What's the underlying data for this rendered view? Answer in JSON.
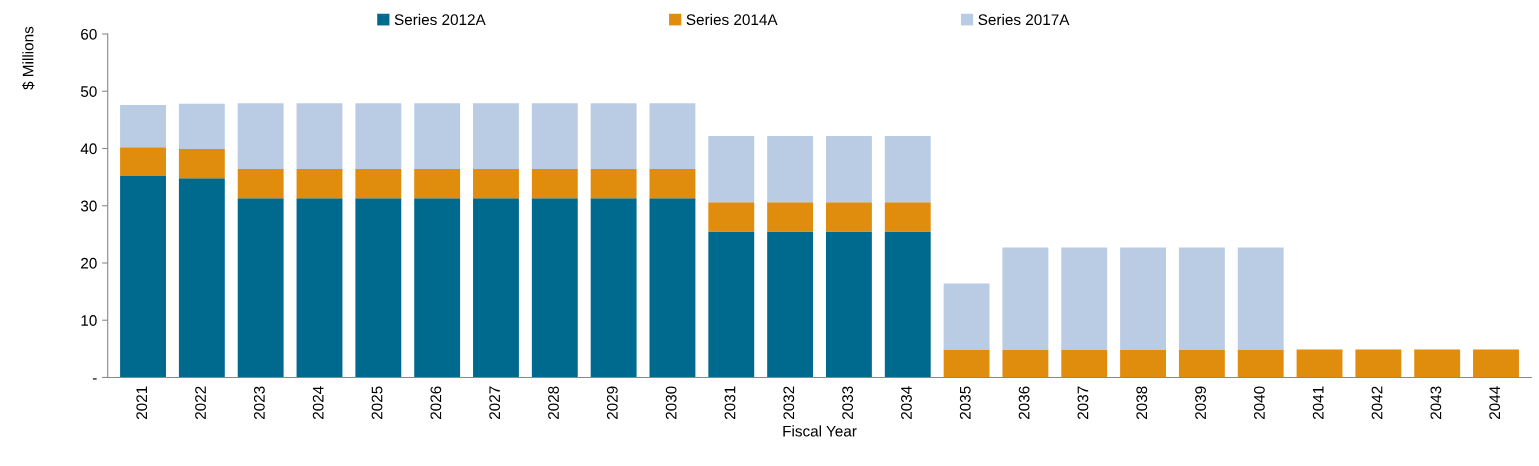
{
  "chart_data": {
    "type": "bar",
    "stacked": true,
    "xlabel": "Fiscal Year",
    "ylabel": "$ Millions",
    "categories": [
      "2021",
      "2022",
      "2023",
      "2024",
      "2025",
      "2026",
      "2027",
      "2028",
      "2029",
      "2030",
      "2031",
      "2032",
      "2033",
      "2034",
      "2035",
      "2036",
      "2037",
      "2038",
      "2039",
      "2040",
      "2041",
      "2042",
      "2043",
      "2044"
    ],
    "series": [
      {
        "name": "Series 2012A",
        "color": "#006a8e",
        "values": [
          35.2,
          34.8,
          31.3,
          31.3,
          31.3,
          31.3,
          31.3,
          31.3,
          31.3,
          31.3,
          25.5,
          25.5,
          25.5,
          25.5,
          null,
          null,
          null,
          null,
          null,
          null,
          null,
          null,
          null,
          null
        ]
      },
      {
        "name": "Series 2014A",
        "color": "#e08c0c",
        "values": [
          5.0,
          5.1,
          5.1,
          5.1,
          5.1,
          5.1,
          5.1,
          5.1,
          5.1,
          5.1,
          5.1,
          5.1,
          5.1,
          5.1,
          4.9,
          4.9,
          4.9,
          4.9,
          4.9,
          4.9,
          4.9,
          4.9,
          4.9,
          4.9
        ]
      },
      {
        "name": "Series 2017A",
        "color": "#b9cce4",
        "values": [
          7.4,
          7.9,
          11.5,
          11.5,
          11.5,
          11.5,
          11.5,
          11.5,
          11.5,
          11.5,
          11.6,
          11.6,
          11.6,
          11.6,
          11.5,
          17.8,
          17.8,
          17.8,
          17.8,
          17.8,
          null,
          null,
          null,
          null
        ]
      }
    ],
    "ylim": [
      0,
      60
    ],
    "yticks": [
      {
        "value": 0,
        "label": "-"
      },
      10,
      20,
      30,
      40,
      50,
      60
    ],
    "grid": false,
    "legend": "top"
  }
}
